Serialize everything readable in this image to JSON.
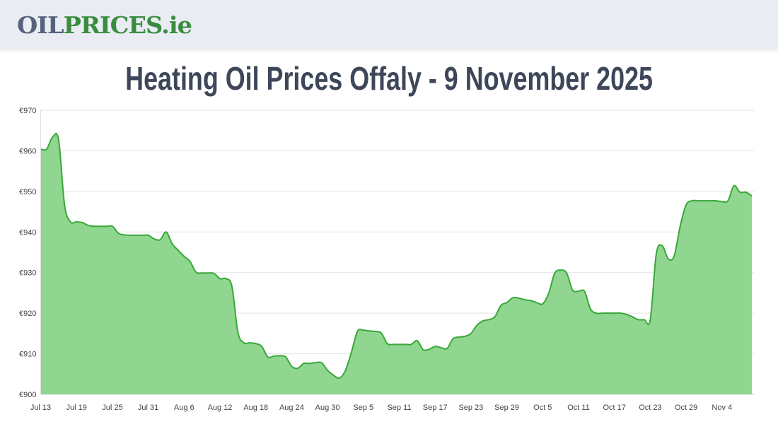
{
  "header": {
    "logo_part1": "OIL",
    "logo_part2": "PRICES.ie"
  },
  "title": "Heating Oil Prices Offaly - 9 November 2025",
  "colors": {
    "line": "#38a838",
    "fill": "#90d690",
    "header_bg": "#e9ecf3"
  },
  "chart_data": {
    "type": "area",
    "title": "Heating Oil Prices Offaly - 9 November 2025",
    "xlabel": "",
    "ylabel": "",
    "ylim": [
      900,
      970
    ],
    "y_ticks": [
      "€900",
      "€910",
      "€920",
      "€930",
      "€940",
      "€950",
      "€960",
      "€970"
    ],
    "y_tick_values": [
      900,
      910,
      920,
      930,
      940,
      950,
      960,
      970
    ],
    "x_range": [
      "2025-07-13",
      "2025-11-09"
    ],
    "x_ticks": [
      "Jul 13",
      "Jul 19",
      "Jul 25",
      "Jul 31",
      "Aug 6",
      "Aug 12",
      "Aug 18",
      "Aug 24",
      "Aug 30",
      "Sep 5",
      "Sep 11",
      "Sep 17",
      "Sep 23",
      "Sep 29",
      "Oct 5",
      "Oct 11",
      "Oct 17",
      "Oct 23",
      "Oct 29",
      "Nov 4"
    ],
    "grid": true,
    "legend": "none",
    "start_date": "2025-07-13",
    "frequency": "daily",
    "values": [
      960.4,
      960.4,
      963.4,
      962.7,
      946.6,
      942.5,
      942.5,
      942.3,
      941.6,
      941.4,
      941.4,
      941.4,
      941.4,
      939.7,
      939.3,
      939.2,
      939.2,
      939.2,
      939.2,
      938.3,
      938.1,
      940.0,
      937.1,
      935.5,
      934.0,
      932.7,
      930.1,
      929.9,
      929.9,
      929.8,
      928.5,
      928.5,
      926.6,
      915.3,
      912.7,
      912.7,
      912.5,
      911.8,
      909.2,
      909.4,
      909.5,
      909.2,
      906.9,
      906.4,
      907.6,
      907.6,
      907.8,
      907.8,
      905.9,
      904.7,
      904.0,
      905.9,
      910.4,
      915.5,
      915.8,
      915.6,
      915.5,
      915.1,
      912.5,
      912.3,
      912.3,
      912.3,
      912.3,
      913.2,
      911.0,
      911.1,
      911.8,
      911.5,
      911.3,
      913.7,
      914.1,
      914.3,
      915.0,
      917.0,
      918.1,
      918.4,
      919.1,
      921.9,
      922.6,
      923.8,
      923.7,
      923.3,
      923.1,
      922.6,
      922.3,
      924.9,
      929.8,
      930.6,
      929.9,
      925.7,
      925.4,
      925.4,
      921.0,
      920.0,
      920.0,
      920.0,
      920.0,
      920.0,
      919.7,
      919.1,
      918.4,
      918.4,
      918.4,
      934.5,
      936.6,
      933.4,
      934.1,
      941.4,
      946.7,
      947.7,
      947.7,
      947.7,
      947.7,
      947.7,
      947.5,
      947.7,
      951.4,
      949.8,
      949.8,
      948.9
    ]
  }
}
